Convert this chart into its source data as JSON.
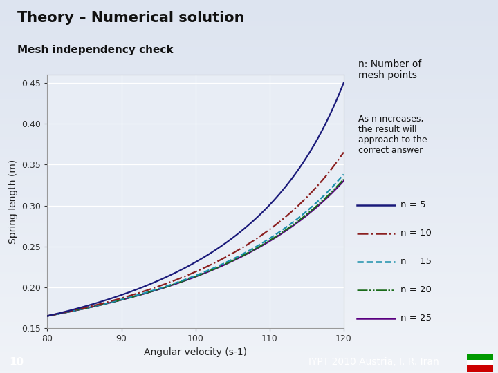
{
  "title": "Theory – Numerical solution",
  "subtitle": "Mesh independency check",
  "xlabel": "Angular velocity (s-1)",
  "ylabel": "Spring length (m)",
  "xlim": [
    80,
    120
  ],
  "ylim": [
    0.15,
    0.46
  ],
  "xticks": [
    80,
    90,
    100,
    110,
    120
  ],
  "yticks": [
    0.15,
    0.2,
    0.25,
    0.3,
    0.35,
    0.4,
    0.45
  ],
  "bg_top": "#dde4f0",
  "bg_bottom": "#f5f7fc",
  "plot_bg_color": "#e8edf5",
  "annotation1": "n: Number of\nmesh points",
  "annotation2": "As n increases,\nthe result will\napproach to the\ncorrect answer",
  "legend_labels": [
    "n = 5",
    "n = 10",
    "n = 15",
    "n = 20",
    "n = 25"
  ],
  "line_colors": [
    "#1a1a7a",
    "#8b2020",
    "#1a8faa",
    "#1a6b1a",
    "#5a0080"
  ],
  "footer_text": "10",
  "footer_right": "IYPT 2010 Austria, I. R. Iran",
  "footer_bg": "#222222",
  "L80": 0.165,
  "L120_vals": [
    0.45,
    0.365,
    0.338,
    0.332,
    0.33
  ],
  "n_values": [
    5,
    10,
    15,
    20,
    25
  ]
}
